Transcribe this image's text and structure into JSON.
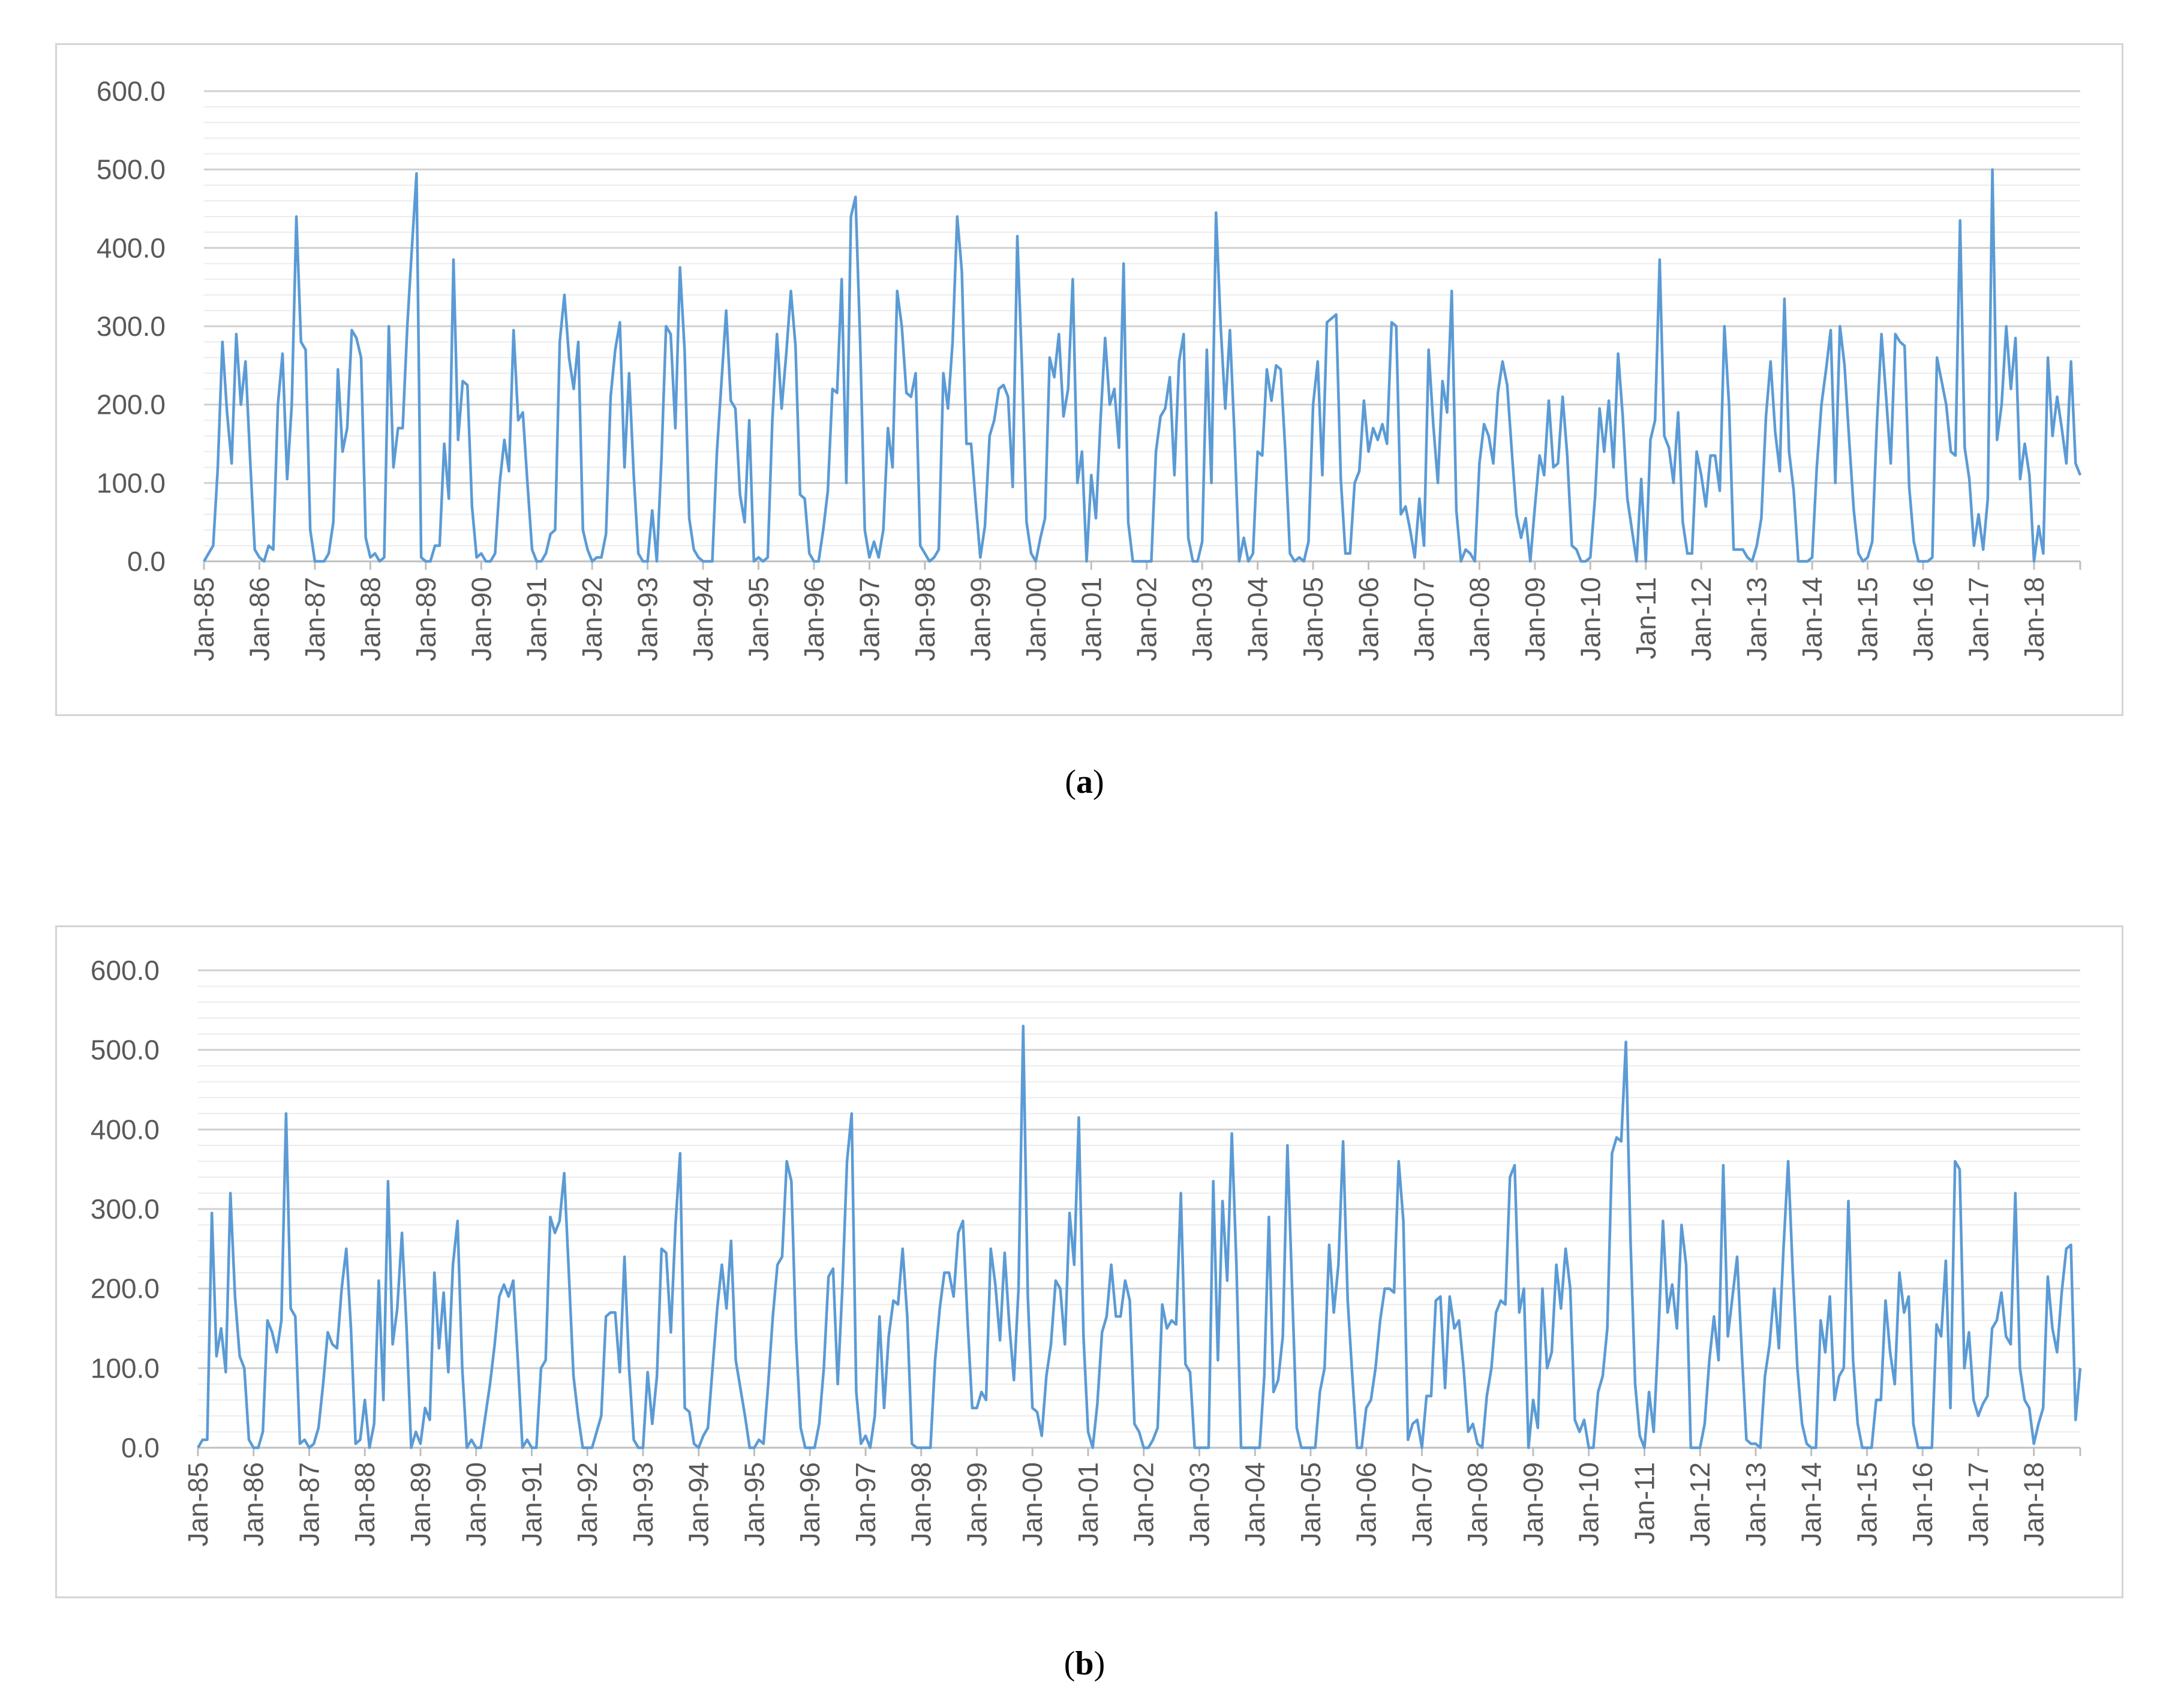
{
  "captions": {
    "a": "a",
    "b": "b"
  },
  "colors": {
    "line": "#5b9bd5",
    "grid": "#d9d9d9",
    "frame": "#d4d4d4",
    "tick_text": "#595959"
  },
  "chart_data": [
    {
      "type": "line",
      "panel": "a",
      "ylim": [
        0,
        600
      ],
      "yticks": [
        "0.0",
        "100.0",
        "200.0",
        "300.0",
        "400.0",
        "500.0",
        "600.0"
      ],
      "grid": "horizontal",
      "xticks": [
        "Jan-85",
        "Jan-86",
        "Jan-87",
        "Jan-88",
        "Jan-89",
        "Jan-90",
        "Jan-91",
        "Jan-92",
        "Jan-93",
        "Jan-94",
        "Jan-95",
        "Jan-96",
        "Jan-97",
        "Jan-98",
        "Jan-99",
        "Jan-00",
        "Jan-01",
        "Jan-02",
        "Jan-03",
        "Jan-04",
        "Jan-05",
        "Jan-06",
        "Jan-07",
        "Jan-08",
        "Jan-09",
        "Jan-10",
        "Jan-11",
        "Jan-12",
        "Jan-13",
        "Jan-14",
        "Jan-15",
        "Jan-16",
        "Jan-17",
        "Jan-18"
      ],
      "series": [
        {
          "monthly_values_by_year": [
            [
              0,
              10,
              20,
              120,
              280,
              190,
              125,
              290,
              200,
              255,
              130,
              15
            ],
            [
              5,
              0,
              20,
              15,
              200,
              265,
              105,
              200,
              440,
              280,
              270,
              40
            ],
            [
              0,
              0,
              0,
              10,
              50,
              245,
              140,
              170,
              295,
              285,
              260,
              30
            ],
            [
              5,
              10,
              0,
              5,
              300,
              120,
              170,
              170,
              300,
              400,
              495,
              5
            ],
            [
              0,
              0,
              20,
              20,
              150,
              80,
              385,
              155,
              230,
              225,
              70,
              5
            ],
            [
              10,
              0,
              0,
              10,
              100,
              155,
              115,
              295,
              180,
              190,
              100,
              15
            ],
            [
              0,
              0,
              10,
              35,
              40,
              280,
              340,
              260,
              220,
              280,
              40,
              15
            ],
            [
              0,
              5,
              5,
              35,
              210,
              270,
              305,
              120,
              240,
              110,
              10,
              0
            ],
            [
              0,
              65,
              0,
              130,
              300,
              290,
              170,
              375,
              270,
              55,
              15,
              5
            ],
            [
              0,
              0,
              0,
              140,
              230,
              320,
              205,
              195,
              85,
              50,
              180,
              0
            ],
            [
              5,
              0,
              5,
              180,
              290,
              195,
              265,
              345,
              275,
              85,
              80,
              10
            ],
            [
              0,
              0,
              40,
              90,
              220,
              215,
              360,
              100,
              440,
              465,
              280,
              40
            ],
            [
              5,
              25,
              5,
              40,
              170,
              120,
              345,
              300,
              215,
              210,
              240,
              20
            ],
            [
              10,
              0,
              5,
              15,
              240,
              195,
              280,
              440,
              370,
              150,
              150,
              75
            ],
            [
              5,
              45,
              160,
              180,
              220,
              225,
              210,
              95,
              415,
              250,
              50,
              10
            ],
            [
              0,
              30,
              55,
              260,
              235,
              290,
              185,
              220,
              360,
              100,
              140,
              0
            ],
            [
              110,
              55,
              180,
              285,
              200,
              220,
              145,
              380,
              50,
              0,
              0,
              0
            ],
            [
              0,
              0,
              140,
              185,
              195,
              235,
              110,
              255,
              290,
              30,
              0,
              0
            ],
            [
              25,
              270,
              100,
              445,
              300,
              195,
              295,
              160,
              0,
              30,
              0,
              10
            ],
            [
              140,
              135,
              245,
              205,
              250,
              245,
              140,
              10,
              0,
              5,
              0,
              25
            ],
            [
              200,
              255,
              110,
              305,
              310,
              315,
              105,
              10,
              10,
              100,
              115,
              205
            ],
            [
              140,
              170,
              155,
              175,
              150,
              305,
              300,
              60,
              70,
              40,
              5,
              80
            ],
            [
              20,
              270,
              175,
              100,
              230,
              190,
              345,
              65,
              0,
              15,
              10,
              0
            ],
            [
              125,
              175,
              160,
              125,
              215,
              255,
              225,
              140,
              60,
              30,
              55,
              0
            ],
            [
              70,
              135,
              110,
              205,
              120,
              125,
              210,
              135,
              20,
              15,
              0,
              0
            ],
            [
              5,
              80,
              195,
              140,
              205,
              120,
              265,
              185,
              80,
              40,
              0,
              105
            ],
            [
              0,
              155,
              180,
              385,
              160,
              145,
              100,
              190,
              50,
              10,
              10,
              140
            ],
            [
              110,
              70,
              135,
              135,
              90,
              300,
              200,
              15,
              15,
              15,
              5,
              0
            ],
            [
              20,
              55,
              185,
              255,
              165,
              115,
              335,
              140,
              90,
              0,
              0,
              0
            ],
            [
              5,
              120,
              200,
              245,
              295,
              100,
              300,
              250,
              155,
              65,
              10,
              0
            ],
            [
              5,
              25,
              175,
              290,
              210,
              125,
              290,
              280,
              275,
              95,
              25,
              0
            ],
            [
              0,
              0,
              5,
              260,
              230,
              200,
              140,
              135,
              435,
              145,
              105,
              20
            ],
            [
              60,
              15,
              80,
              500,
              155,
              200,
              300,
              220,
              285,
              105,
              150,
              110
            ],
            [
              0,
              45,
              10,
              260,
              160,
              210,
              170,
              125,
              255,
              125,
              110
            ]
          ]
        }
      ]
    },
    {
      "type": "line",
      "panel": "b",
      "ylim": [
        0,
        600
      ],
      "yticks": [
        "0.0",
        "100.0",
        "200.0",
        "300.0",
        "400.0",
        "500.0",
        "600.0"
      ],
      "grid": "horizontal",
      "xticks": [
        "Jan-85",
        "Jan-86",
        "Jan-87",
        "Jan-88",
        "Jan-89",
        "Jan-90",
        "Jan-91",
        "Jan-92",
        "Jan-93",
        "Jan-94",
        "Jan-95",
        "Jan-96",
        "Jan-97",
        "Jan-98",
        "Jan-99",
        "Jan-00",
        "Jan-01",
        "Jan-02",
        "Jan-03",
        "Jan-04",
        "Jan-05",
        "Jan-06",
        "Jan-07",
        "Jan-08",
        "Jan-09",
        "Jan-10",
        "Jan-11",
        "Jan-12",
        "Jan-13",
        "Jan-14",
        "Jan-15",
        "Jan-16",
        "Jan-17",
        "Jan-18"
      ],
      "series": [
        {
          "monthly_values_by_year": [
            [
              0,
              10,
              10,
              295,
              115,
              150,
              95,
              320,
              190,
              115,
              100,
              10
            ],
            [
              0,
              0,
              20,
              160,
              145,
              120,
              160,
              420,
              175,
              165,
              5,
              10
            ],
            [
              0,
              5,
              25,
              80,
              145,
              130,
              125,
              200,
              250,
              150,
              5,
              10
            ],
            [
              60,
              0,
              30,
              210,
              60,
              335,
              130,
              175,
              270,
              150,
              0,
              20
            ],
            [
              5,
              50,
              35,
              220,
              125,
              195,
              95,
              230,
              285,
              100,
              0,
              10
            ],
            [
              0,
              0,
              40,
              80,
              130,
              190,
              205,
              190,
              210,
              110,
              0,
              10
            ],
            [
              0,
              0,
              100,
              110,
              290,
              270,
              285,
              345,
              220,
              90,
              40,
              0
            ],
            [
              0,
              0,
              20,
              40,
              165,
              170,
              170,
              95,
              240,
              100,
              10,
              0
            ],
            [
              0,
              95,
              30,
              90,
              250,
              245,
              145,
              280,
              370,
              50,
              45,
              5
            ],
            [
              0,
              15,
              25,
              100,
              175,
              230,
              175,
              260,
              110,
              75,
              40,
              0
            ],
            [
              0,
              10,
              5,
              80,
              165,
              230,
              240,
              360,
              335,
              140,
              25,
              0
            ],
            [
              0,
              0,
              30,
              100,
              215,
              225,
              80,
              200,
              360,
              420,
              70,
              5
            ],
            [
              15,
              0,
              40,
              165,
              50,
              140,
              185,
              180,
              250,
              165,
              5,
              0
            ],
            [
              0,
              0,
              0,
              110,
              175,
              220,
              220,
              190,
              270,
              285,
              160,
              50
            ],
            [
              50,
              70,
              60,
              250,
              205,
              135,
              245,
              155,
              85,
              200,
              530,
              190
            ],
            [
              50,
              45,
              15,
              90,
              130,
              210,
              200,
              130,
              295,
              230,
              415,
              140
            ],
            [
              20,
              0,
              55,
              145,
              165,
              230,
              165,
              165,
              210,
              185,
              30,
              20
            ],
            [
              0,
              0,
              10,
              25,
              180,
              150,
              160,
              155,
              320,
              105,
              95,
              0
            ],
            [
              0,
              0,
              0,
              335,
              110,
              310,
              210,
              395,
              230,
              0,
              0,
              0
            ],
            [
              0,
              0,
              90,
              290,
              70,
              85,
              140,
              380,
              200,
              25,
              0,
              0
            ],
            [
              0,
              0,
              70,
              100,
              255,
              170,
              230,
              385,
              185,
              90,
              0,
              0
            ],
            [
              50,
              60,
              100,
              160,
              200,
              200,
              195,
              360,
              285,
              10,
              30,
              35
            ],
            [
              0,
              65,
              65,
              185,
              190,
              75,
              190,
              150,
              160,
              100,
              20,
              30
            ],
            [
              5,
              0,
              65,
              100,
              170,
              185,
              180,
              340,
              355,
              170,
              200,
              0
            ],
            [
              60,
              25,
              200,
              100,
              120,
              230,
              175,
              250,
              200,
              35,
              20,
              35
            ],
            [
              0,
              0,
              70,
              90,
              150,
              370,
              390,
              385,
              510,
              260,
              80,
              15
            ],
            [
              0,
              70,
              20,
              140,
              285,
              170,
              205,
              150,
              280,
              230,
              0,
              0
            ],
            [
              0,
              30,
              110,
              165,
              110,
              355,
              140,
              190,
              240,
              120,
              10,
              5
            ],
            [
              5,
              0,
              90,
              130,
              200,
              125,
              250,
              360,
              220,
              100,
              30,
              5
            ],
            [
              0,
              0,
              160,
              120,
              190,
              60,
              90,
              100,
              310,
              110,
              30,
              0
            ],
            [
              0,
              0,
              60,
              60,
              185,
              120,
              80,
              220,
              170,
              190,
              30,
              0
            ],
            [
              0,
              0,
              0,
              155,
              140,
              235,
              50,
              360,
              350,
              100,
              145,
              60
            ],
            [
              40,
              55,
              65,
              150,
              160,
              195,
              140,
              130,
              320,
              100,
              60,
              50
            ],
            [
              5,
              30,
              50,
              215,
              150,
              120,
              195,
              250,
              255,
              35,
              100
            ]
          ]
        }
      ]
    }
  ]
}
